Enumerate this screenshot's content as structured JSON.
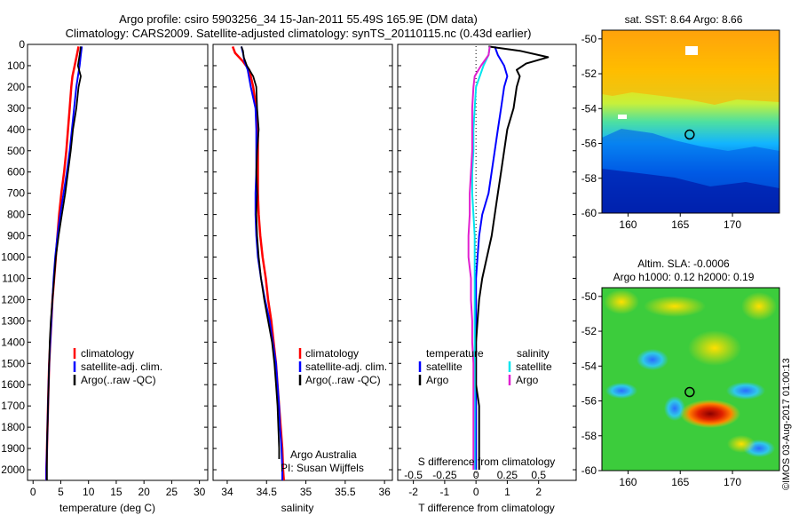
{
  "title_line1": "Argo profile: csiro 5903256_34 15-Jan-2011 55.49S 165.9E (DM data)",
  "title_line2": "Climatology: CARS2009. Satellite-adjusted climatology: synTS_20110115.nc (0.43d earlier)",
  "watermark": "©IMOS 03-Aug-2017 01:00:13",
  "colors": {
    "climatology": "#ff0000",
    "satellite": "#0000ff",
    "argo": "#000000",
    "s_satellite": "#00e5ee",
    "s_argo": "#e020d0"
  },
  "depth_ticks": [
    "0",
    "100",
    "200",
    "300",
    "400",
    "500",
    "600",
    "700",
    "800",
    "900",
    "1000",
    "1100",
    "1200",
    "1300",
    "1400",
    "1500",
    "1600",
    "1700",
    "1800",
    "1900",
    "2000"
  ],
  "chart_data": [
    {
      "type": "line",
      "id": "temperature",
      "xlabel": "temperature (deg C)",
      "ylabel": "",
      "xlim": [
        -1,
        31.5
      ],
      "ylim": [
        2050,
        0
      ],
      "xticks": [
        0,
        5,
        10,
        15,
        20,
        25,
        30
      ],
      "legend": {
        "placement": "lower-center",
        "entries": [
          "climatology",
          "satellite-adj. clim.",
          "Argo(..raw -QC)"
        ]
      },
      "series": [
        {
          "name": "climatology",
          "depth": [
            10,
            50,
            100,
            150,
            200,
            300,
            400,
            500,
            600,
            700,
            800,
            900,
            1000,
            1100,
            1200,
            1300,
            1400,
            1500,
            1600,
            1700,
            1800,
            1900,
            2000,
            2050
          ],
          "values": [
            8.2,
            7.9,
            7.5,
            7.1,
            6.9,
            6.6,
            6.3,
            6.0,
            5.6,
            5.1,
            4.7,
            4.4,
            4.1,
            3.8,
            3.5,
            3.3,
            3.1,
            2.9,
            2.8,
            2.7,
            2.6,
            2.5,
            2.4,
            2.4
          ]
        },
        {
          "name": "satellite-adj. clim.",
          "depth": [
            10,
            50,
            100,
            150,
            200,
            300,
            400,
            500,
            600,
            700,
            800,
            900,
            1000,
            1100,
            1200,
            1300,
            1400,
            1500,
            1600,
            1700,
            1800,
            1900,
            2000,
            2050
          ],
          "values": [
            8.8,
            8.6,
            8.4,
            8.1,
            7.8,
            7.4,
            7.0,
            6.6,
            6.1,
            5.5,
            4.9,
            4.4,
            4.0,
            3.7,
            3.5,
            3.3,
            3.1,
            2.9,
            2.8,
            2.7,
            2.6,
            2.5,
            2.4,
            2.4
          ]
        },
        {
          "name": "Argo(..raw -QC)",
          "depth": [
            10,
            50,
            100,
            150,
            200,
            300,
            400,
            500,
            600,
            700,
            800,
            900,
            1000,
            1100,
            1200,
            1300,
            1400,
            1500,
            1600,
            1700,
            1800,
            1900,
            2000,
            2050
          ],
          "values": [
            8.6,
            8.4,
            8.1,
            8.6,
            8.2,
            7.8,
            7.2,
            6.8,
            6.3,
            5.8,
            5.2,
            4.6,
            4.1,
            3.8,
            3.5,
            3.2,
            3.0,
            2.9,
            2.8,
            2.7,
            2.6,
            2.5,
            2.5,
            2.5
          ]
        }
      ]
    },
    {
      "type": "line",
      "id": "salinity",
      "xlabel": "salinity",
      "ylabel": "",
      "xlim": [
        33.82,
        36.1
      ],
      "ylim": [
        2050,
        0
      ],
      "xticks": [
        34,
        34.5,
        35,
        35.5,
        36
      ],
      "legend": {
        "placement": "lower-right",
        "entries": [
          "climatology",
          "satellite-adj. clim.",
          "Argo(..raw -QC)"
        ]
      },
      "annotation": [
        "Argo Australia",
        "PI: Susan Wijffels"
      ],
      "series": [
        {
          "name": "climatology",
          "depth": [
            10,
            40,
            80,
            120,
            200,
            300,
            400,
            500,
            600,
            700,
            800,
            900,
            1000,
            1100,
            1200,
            1300,
            1400,
            1500,
            1600,
            1700,
            1800,
            1900,
            2000,
            2050
          ],
          "values": [
            34.07,
            34.1,
            34.2,
            34.28,
            34.33,
            34.37,
            34.39,
            34.39,
            34.39,
            34.39,
            34.4,
            34.42,
            34.45,
            34.49,
            34.52,
            34.56,
            34.59,
            34.62,
            34.64,
            34.66,
            34.68,
            34.7,
            34.71,
            34.72
          ]
        },
        {
          "name": "satellite-adj. clim.",
          "depth": [
            10,
            40,
            80,
            120,
            200,
            300,
            400,
            500,
            600,
            700,
            800,
            900,
            1000,
            1100,
            1200,
            1300,
            1400,
            1500,
            1600,
            1700,
            1800,
            1900,
            2000,
            2050
          ],
          "values": [
            34.18,
            34.2,
            34.22,
            34.26,
            34.3,
            34.36,
            34.37,
            34.37,
            34.37,
            34.36,
            34.36,
            34.37,
            34.39,
            34.43,
            34.48,
            34.54,
            34.58,
            34.62,
            34.64,
            34.66,
            34.67,
            34.69,
            34.7,
            34.7
          ]
        },
        {
          "name": "Argo(..raw -QC)",
          "depth": [
            10,
            30,
            60,
            100,
            150,
            200,
            300,
            400,
            500,
            600,
            700,
            800,
            900,
            1000,
            1100,
            1200,
            1300,
            1400,
            1500,
            1600,
            1700,
            1800,
            1900,
            1950
          ],
          "values": [
            34.18,
            34.2,
            34.21,
            34.25,
            34.33,
            34.37,
            34.38,
            34.4,
            34.38,
            34.37,
            34.38,
            34.37,
            34.38,
            34.4,
            34.43,
            34.47,
            34.52,
            34.57,
            34.6,
            34.62,
            34.64,
            34.65,
            34.66,
            34.66
          ]
        }
      ]
    },
    {
      "type": "line",
      "id": "differences",
      "xlabel": "T difference from climatology",
      "xlabel_top": "S difference from climatology",
      "ylabel": "",
      "xlim": [
        -2.5,
        3.2
      ],
      "ylim": [
        2050,
        0
      ],
      "xticks": [
        -2,
        -1,
        0,
        1,
        2
      ],
      "s_ticks": [
        "-0.5",
        "-0.25",
        "0",
        "0.25",
        "0.5"
      ],
      "legend": {
        "placement": "lower-center",
        "headers": [
          "temperature",
          "salinity"
        ],
        "entries": [
          "satellite",
          "Argo",
          "satellite",
          "Argo"
        ]
      },
      "series": [
        {
          "name": "temperature satellite",
          "depth": [
            10,
            50,
            100,
            150,
            200,
            300,
            400,
            500,
            600,
            700,
            800,
            900,
            1000,
            1100,
            1200,
            1300,
            1400,
            1500,
            1600,
            1700,
            1800,
            1900,
            2000
          ],
          "values": [
            0.6,
            0.7,
            0.9,
            1.0,
            0.9,
            0.8,
            0.7,
            0.6,
            0.5,
            0.4,
            0.2,
            0.1,
            0.05,
            0.0,
            0.0,
            0.0,
            0.0,
            0.0,
            0.0,
            0.0,
            0.0,
            0.0,
            0.0
          ]
        },
        {
          "name": "temperature Argo",
          "depth": [
            10,
            30,
            60,
            90,
            120,
            150,
            200,
            300,
            400,
            500,
            600,
            700,
            800,
            900,
            1000,
            1100,
            1200,
            1300,
            1400,
            1500,
            1600,
            1700,
            1800,
            1900,
            2000
          ],
          "values": [
            0.4,
            1.4,
            2.3,
            1.6,
            1.3,
            1.4,
            1.3,
            1.2,
            1.0,
            0.9,
            0.8,
            0.7,
            0.6,
            0.5,
            0.35,
            0.2,
            0.1,
            0.05,
            0.0,
            0.0,
            0.0,
            0.1,
            0.1,
            0.1,
            0.1
          ]
        },
        {
          "name": "salinity satellite",
          "depth": [
            10,
            50,
            100,
            150,
            200,
            300,
            400,
            500,
            600,
            700,
            800,
            900,
            1000,
            1100,
            1200,
            1300,
            1400,
            1500,
            1600,
            1700,
            1800,
            1900,
            2000
          ],
          "values": [
            0.11,
            0.1,
            0.06,
            0.03,
            0.0,
            -0.01,
            -0.02,
            -0.02,
            -0.03,
            -0.03,
            -0.02,
            -0.01,
            -0.01,
            -0.01,
            -0.01,
            -0.01,
            -0.01,
            -0.01,
            -0.01,
            -0.01,
            -0.01,
            -0.01,
            -0.01
          ]
        },
        {
          "name": "salinity Argo",
          "depth": [
            10,
            50,
            100,
            150,
            200,
            300,
            400,
            500,
            600,
            700,
            800,
            900,
            1000,
            1100,
            1200,
            1300,
            1400,
            1500,
            1600,
            1700,
            1800,
            1900,
            2000
          ],
          "values": [
            0.11,
            0.1,
            0.04,
            -0.01,
            -0.02,
            -0.03,
            -0.03,
            -0.03,
            -0.04,
            -0.05,
            -0.05,
            -0.06,
            -0.06,
            -0.04,
            -0.04,
            -0.03,
            -0.03,
            -0.02,
            -0.02,
            -0.02,
            -0.02,
            -0.02,
            -0.02
          ]
        }
      ]
    },
    {
      "type": "heatmap",
      "id": "sst-map",
      "title": "sat. SST: 8.64 Argo: 8.66",
      "xlim": [
        157.5,
        174.5
      ],
      "ylim": [
        -60,
        -49.5
      ],
      "xticks": [
        160,
        165,
        170
      ],
      "yticks": [
        -50,
        -52,
        -54,
        -56,
        -58,
        -60
      ],
      "marker": {
        "lon": 165.9,
        "lat": -55.49,
        "shape": "circle"
      }
    },
    {
      "type": "heatmap",
      "id": "sla-map",
      "title_line1": "Altim. SLA: -0.0006",
      "title_line2": "Argo h1000: 0.12 h2000: 0.19",
      "xlim": [
        157.5,
        174.5
      ],
      "ylim": [
        -60,
        -49.5
      ],
      "xticks": [
        160,
        165,
        170
      ],
      "yticks": [
        -50,
        -52,
        -54,
        -56,
        -58,
        -60
      ],
      "marker": {
        "lon": 165.9,
        "lat": -55.49,
        "shape": "circle"
      }
    }
  ]
}
